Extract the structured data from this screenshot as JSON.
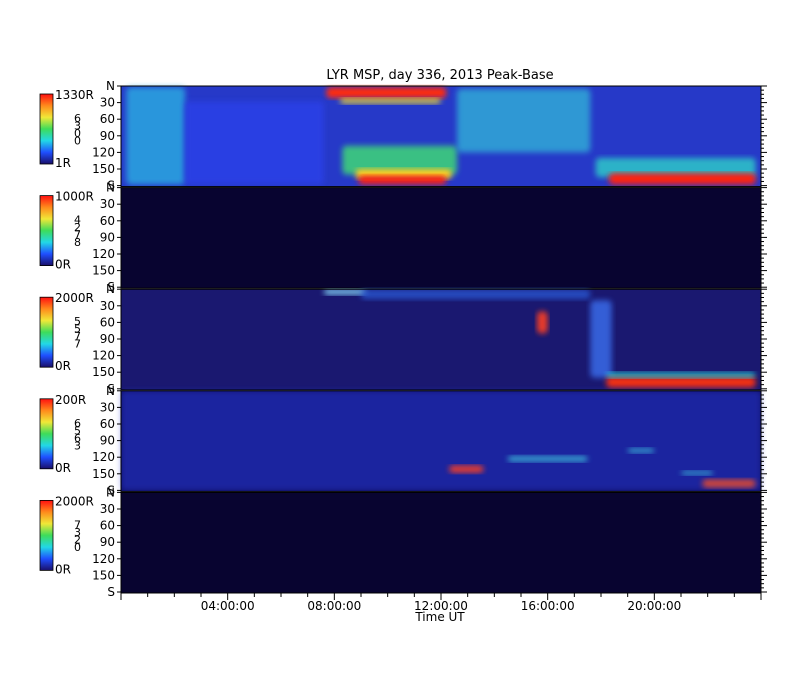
{
  "chart_data": {
    "type": "heatmap",
    "title": "LYR MSP, day 336, 2013 Peak-Base",
    "xlabel": "Time UT",
    "x_ticks": [
      "04:00:00",
      "08:00:00",
      "12:00:00",
      "16:00:00",
      "20:00:00"
    ],
    "x_range_hours": [
      0,
      24
    ],
    "y_tick_labels": [
      "N",
      "30",
      "60",
      "90",
      "120",
      "150",
      "S"
    ],
    "y_range_deg": [
      0,
      180
    ],
    "colormap": [
      "#1a0f6a",
      "#1f4fff",
      "#22d8e6",
      "#3ddc5a",
      "#f0e838",
      "#ff8a1c",
      "#ff1010"
    ],
    "panels": [
      {
        "scale_max": "1330R",
        "scale_min": "1R",
        "channel_digits": [
          "6",
          "3",
          "0",
          "0"
        ],
        "background": "#2639c8",
        "features": [
          {
            "kind": "blob",
            "t0": 0.2,
            "t1": 2.4,
            "y0": 2,
            "y1": 178,
            "color": "#2aa7e0",
            "opacity": 0.85
          },
          {
            "kind": "blob",
            "t0": 2.4,
            "t1": 7.6,
            "y0": 28,
            "y1": 178,
            "color": "#2a3fe6",
            "opacity": 0.9
          },
          {
            "kind": "blob",
            "t0": 7.7,
            "t1": 12.2,
            "y0": 2,
            "y1": 22,
            "color": "#ff2a10",
            "opacity": 1
          },
          {
            "kind": "blob",
            "t0": 8.2,
            "t1": 12.0,
            "y0": 22,
            "y1": 32,
            "color": "#f0d830",
            "opacity": 0.9
          },
          {
            "kind": "blob",
            "t0": 8.3,
            "t1": 12.6,
            "y0": 108,
            "y1": 160,
            "color": "#3ccf7c",
            "opacity": 0.9
          },
          {
            "kind": "blob",
            "t0": 8.8,
            "t1": 12.4,
            "y0": 150,
            "y1": 168,
            "color": "#ffd020",
            "opacity": 1
          },
          {
            "kind": "blob",
            "t0": 8.9,
            "t1": 12.2,
            "y0": 162,
            "y1": 178,
            "color": "#ff2010",
            "opacity": 1
          },
          {
            "kind": "blob",
            "t0": 12.6,
            "t1": 17.6,
            "y0": 5,
            "y1": 120,
            "color": "#30b8d8",
            "opacity": 0.75
          },
          {
            "kind": "blob",
            "t0": 17.8,
            "t1": 23.8,
            "y0": 130,
            "y1": 165,
            "color": "#2ec8c8",
            "opacity": 0.85
          },
          {
            "kind": "blob",
            "t0": 18.3,
            "t1": 23.8,
            "y0": 158,
            "y1": 178,
            "color": "#ff2010",
            "opacity": 1
          }
        ]
      },
      {
        "scale_max": "1000R",
        "scale_min": "0R",
        "channel_digits": [
          "4",
          "2",
          "7",
          "8"
        ],
        "background": "#080430",
        "features": []
      },
      {
        "scale_max": "2000R",
        "scale_min": "0R",
        "channel_digits": [
          "5",
          "5",
          "7",
          "7"
        ],
        "background": "#1a1870",
        "features": [
          {
            "kind": "blob",
            "t0": 7.6,
            "t1": 9.2,
            "y0": 0,
            "y1": 10,
            "color": "#8ae0ff",
            "opacity": 0.9
          },
          {
            "kind": "blob",
            "t0": 9.0,
            "t1": 17.6,
            "y0": 0,
            "y1": 18,
            "color": "#2a60e0",
            "opacity": 0.7
          },
          {
            "kind": "blob",
            "t0": 15.6,
            "t1": 16.0,
            "y0": 40,
            "y1": 80,
            "color": "#ff4020",
            "opacity": 0.9
          },
          {
            "kind": "blob",
            "t0": 17.6,
            "t1": 18.4,
            "y0": 20,
            "y1": 160,
            "color": "#3a70f0",
            "opacity": 0.8
          },
          {
            "kind": "blob",
            "t0": 18.2,
            "t1": 23.8,
            "y0": 158,
            "y1": 178,
            "color": "#ff3010",
            "opacity": 0.95
          },
          {
            "kind": "blob",
            "t0": 18.2,
            "t1": 23.8,
            "y0": 150,
            "y1": 160,
            "color": "#2ae0e0",
            "opacity": 0.8
          }
        ]
      },
      {
        "scale_max": "200R",
        "scale_min": "0R",
        "channel_digits": [
          "6",
          "5",
          "6",
          "3"
        ],
        "background": "#10106a",
        "features": [
          {
            "kind": "blob",
            "t0": 0,
            "t1": 24,
            "y0": 0,
            "y1": 180,
            "color": "#2a3ce0",
            "opacity": 0.45
          },
          {
            "kind": "blob",
            "t0": 12.3,
            "t1": 13.6,
            "y0": 135,
            "y1": 148,
            "color": "#ff4020",
            "opacity": 0.9
          },
          {
            "kind": "blob",
            "t0": 14.5,
            "t1": 17.5,
            "y0": 118,
            "y1": 128,
            "color": "#40c8e0",
            "opacity": 0.8
          },
          {
            "kind": "blob",
            "t0": 19.0,
            "t1": 20.0,
            "y0": 104,
            "y1": 112,
            "color": "#40c8e0",
            "opacity": 0.8
          },
          {
            "kind": "blob",
            "t0": 21.0,
            "t1": 22.2,
            "y0": 145,
            "y1": 152,
            "color": "#40c8e0",
            "opacity": 0.8
          },
          {
            "kind": "blob",
            "t0": 21.8,
            "t1": 23.8,
            "y0": 160,
            "y1": 175,
            "color": "#ff5020",
            "opacity": 0.8
          }
        ]
      },
      {
        "scale_max": "2000R",
        "scale_min": "0R",
        "channel_digits": [
          "7",
          "3",
          "2",
          "0"
        ],
        "background": "#080430",
        "features": []
      }
    ]
  }
}
